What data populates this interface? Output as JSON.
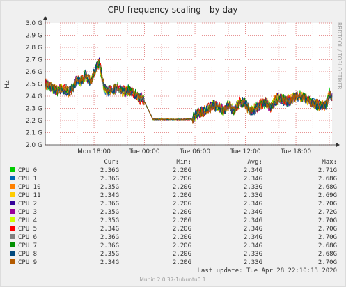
{
  "chart_data": {
    "type": "line",
    "title": "CPU frequency scaling - by day",
    "ylabel": "Hz",
    "side_label": "RRDTOOL / TOBI OETIKER",
    "ylim": [
      2.0,
      3.0
    ],
    "y_unit": "G",
    "y_ticks": [
      2.0,
      2.1,
      2.2,
      2.3,
      2.4,
      2.5,
      2.6,
      2.7,
      2.8,
      2.9,
      3.0
    ],
    "y_tick_labels": [
      "2.0 G",
      "2.1 G",
      "2.2 G",
      "2.3 G",
      "2.4 G",
      "2.5 G",
      "2.6 G",
      "2.7 G",
      "2.8 G",
      "2.9 G",
      "3.0 G"
    ],
    "x_tick_labels": [
      {
        "hour": 18,
        "label": "Mon 18:00"
      },
      {
        "hour": 24,
        "label": "Tue 00:00"
      },
      {
        "hour": 30,
        "label": "Tue 06:00"
      },
      {
        "hour": 36,
        "label": "Tue 12:00"
      },
      {
        "hour": 42,
        "label": "Tue 18:00"
      }
    ],
    "xlim_hours": [
      12.2,
      46.3
    ],
    "grid": true,
    "trace_profile": {
      "hours": [
        12.2,
        13.0,
        13.5,
        14.0,
        14.5,
        15.0,
        15.6,
        16.0,
        16.4,
        17.0,
        17.6,
        18.0,
        18.6,
        19.2,
        19.7,
        20.2,
        20.8,
        21.4,
        22.0,
        22.6,
        23.1,
        23.4,
        23.8,
        25.0,
        27.0,
        29.0,
        29.7,
        29.8,
        30.3,
        31.0,
        31.6,
        32.2,
        32.8,
        33.4,
        34.0,
        34.6,
        35.2,
        35.8,
        36.2,
        36.6,
        37.2,
        37.8,
        38.4,
        39.0,
        39.6,
        40.2,
        40.8,
        41.4,
        42.0,
        42.6,
        43.2,
        43.8,
        44.4,
        45.0,
        45.6,
        46.0,
        46.3
      ],
      "values": [
        2.5,
        2.47,
        2.44,
        2.46,
        2.45,
        2.44,
        2.47,
        2.55,
        2.52,
        2.57,
        2.51,
        2.6,
        2.68,
        2.47,
        2.44,
        2.45,
        2.47,
        2.44,
        2.45,
        2.43,
        2.4,
        2.38,
        2.38,
        2.21,
        2.21,
        2.21,
        2.21,
        2.22,
        2.26,
        2.27,
        2.3,
        2.33,
        2.31,
        2.28,
        2.33,
        2.28,
        2.34,
        2.35,
        2.31,
        2.28,
        2.3,
        2.33,
        2.35,
        2.31,
        2.37,
        2.38,
        2.36,
        2.37,
        2.4,
        2.4,
        2.38,
        2.35,
        2.33,
        2.32,
        2.33,
        2.43,
        2.4
      ]
    },
    "legend_headers": {
      "cur": "Cur:",
      "min": "Min:",
      "avg": "Avg:",
      "max": "Max:"
    },
    "series": [
      {
        "name": "CPU 0",
        "color": "#00cc00",
        "cur": "2.36G",
        "min": "2.20G",
        "avg": "2.34G",
        "max": "2.71G"
      },
      {
        "name": "CPU 1",
        "color": "#0066b3",
        "cur": "2.36G",
        "min": "2.20G",
        "avg": "2.34G",
        "max": "2.68G"
      },
      {
        "name": "CPU 10",
        "color": "#ff8000",
        "cur": "2.35G",
        "min": "2.20G",
        "avg": "2.33G",
        "max": "2.68G"
      },
      {
        "name": "CPU 11",
        "color": "#ffcc00",
        "cur": "2.34G",
        "min": "2.20G",
        "avg": "2.33G",
        "max": "2.69G"
      },
      {
        "name": "CPU 2",
        "color": "#330099",
        "cur": "2.36G",
        "min": "2.20G",
        "avg": "2.34G",
        "max": "2.70G"
      },
      {
        "name": "CPU 3",
        "color": "#990099",
        "cur": "2.35G",
        "min": "2.20G",
        "avg": "2.34G",
        "max": "2.72G"
      },
      {
        "name": "CPU 4",
        "color": "#ccff00",
        "cur": "2.35G",
        "min": "2.20G",
        "avg": "2.34G",
        "max": "2.70G"
      },
      {
        "name": "CPU 5",
        "color": "#ff0000",
        "cur": "2.34G",
        "min": "2.20G",
        "avg": "2.34G",
        "max": "2.70G"
      },
      {
        "name": "CPU 6",
        "color": "#808080",
        "cur": "2.36G",
        "min": "2.20G",
        "avg": "2.34G",
        "max": "2.70G"
      },
      {
        "name": "CPU 7",
        "color": "#008f00",
        "cur": "2.36G",
        "min": "2.20G",
        "avg": "2.34G",
        "max": "2.68G"
      },
      {
        "name": "CPU 8",
        "color": "#00487d",
        "cur": "2.35G",
        "min": "2.20G",
        "avg": "2.33G",
        "max": "2.68G"
      },
      {
        "name": "CPU 9",
        "color": "#b35a00",
        "cur": "2.34G",
        "min": "2.20G",
        "avg": "2.33G",
        "max": "2.70G"
      }
    ],
    "last_update": "Last update: Tue Apr 28 22:10:13 2020",
    "footer": "Munin 2.0.37-1ubuntu0.1"
  }
}
